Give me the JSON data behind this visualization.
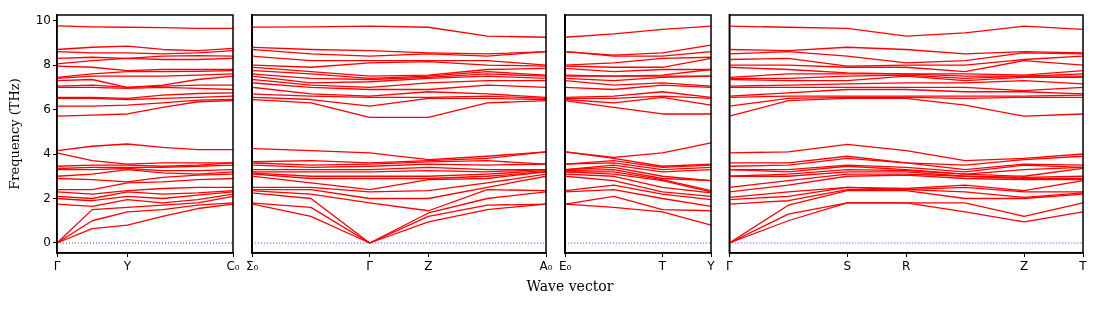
{
  "chart_data": [
    {
      "type": "line",
      "ylabel": "Frequency (THz)",
      "marker": "none",
      "line_style": "solid",
      "legend": false,
      "categories": [
        "Γ",
        null,
        "Y",
        null,
        null,
        "C₀"
      ],
      "ylim": [
        -0.45,
        10.25
      ],
      "yticks": [
        0,
        2,
        4,
        6,
        8,
        10
      ],
      "ref_lines": [
        {
          "axis": "y",
          "value": 0,
          "color": "#0000ff",
          "line_style": "dotted"
        }
      ],
      "series": [
        {
          "color": "#ff0000",
          "values": [
            0,
            0.65,
            0.8,
            1.2,
            1.55,
            1.75
          ]
        },
        {
          "color": "#ff0000",
          "values": [
            0,
            1.0,
            1.4,
            1.5,
            1.7,
            1.8
          ]
        },
        {
          "color": "#ff0000",
          "values": [
            0,
            1.5,
            1.6,
            1.7,
            1.8,
            2.1
          ]
        },
        {
          "color": "#ff0000",
          "values": [
            1.75,
            1.65,
            1.95,
            1.8,
            1.95,
            2.2
          ]
        },
        {
          "color": "#ff0000",
          "values": [
            2.0,
            1.9,
            2.1,
            2.0,
            2.15,
            2.3
          ]
        },
        {
          "color": "#ff0000",
          "values": [
            2.1,
            2.0,
            2.3,
            2.2,
            2.25,
            2.35
          ]
        },
        {
          "color": "#ff0000",
          "values": [
            2.3,
            2.2,
            2.35,
            2.45,
            2.5,
            2.5
          ]
        },
        {
          "color": "#ff0000",
          "values": [
            2.4,
            2.4,
            2.7,
            2.75,
            2.85,
            2.9
          ]
        },
        {
          "color": "#ff0000",
          "values": [
            2.9,
            2.85,
            2.75,
            2.95,
            3.05,
            3.1
          ]
        },
        {
          "color": "#ff0000",
          "values": [
            3.0,
            3.1,
            3.3,
            3.15,
            3.1,
            3.2
          ]
        },
        {
          "color": "#ff0000",
          "values": [
            3.3,
            3.3,
            3.35,
            3.25,
            3.25,
            3.3
          ]
        },
        {
          "color": "#ff0000",
          "values": [
            3.35,
            3.4,
            3.4,
            3.4,
            3.45,
            3.5
          ]
        },
        {
          "color": "#ff0000",
          "values": [
            3.45,
            3.5,
            3.5,
            3.45,
            3.5,
            3.6
          ]
        },
        {
          "color": "#ff0000",
          "values": [
            4.05,
            3.7,
            3.55,
            3.6,
            3.6,
            3.6
          ]
        },
        {
          "color": "#ff0000",
          "values": [
            4.15,
            4.35,
            4.45,
            4.3,
            4.2,
            4.2
          ]
        },
        {
          "color": "#ff0000",
          "values": [
            5.7,
            5.75,
            5.8,
            6.1,
            6.35,
            6.4
          ]
        },
        {
          "color": "#ff0000",
          "values": [
            6.15,
            6.15,
            6.2,
            6.3,
            6.42,
            6.45
          ]
        },
        {
          "color": "#ff0000",
          "values": [
            6.5,
            6.5,
            6.45,
            6.5,
            6.55,
            6.6
          ]
        },
        {
          "color": "#ff0000",
          "values": [
            6.55,
            6.55,
            6.5,
            6.65,
            6.72,
            6.75
          ]
        },
        {
          "color": "#ff0000",
          "values": [
            7.0,
            7.0,
            6.95,
            7.0,
            6.95,
            6.9
          ]
        },
        {
          "color": "#ff0000",
          "values": [
            7.05,
            7.1,
            7.0,
            7.05,
            7.1,
            7.1
          ]
        },
        {
          "color": "#ff0000",
          "values": [
            7.3,
            7.35,
            7.0,
            7.1,
            7.35,
            7.5
          ]
        },
        {
          "color": "#ff0000",
          "values": [
            7.4,
            7.5,
            7.5,
            7.5,
            7.55,
            7.6
          ]
        },
        {
          "color": "#ff0000",
          "values": [
            7.45,
            7.6,
            7.7,
            7.7,
            7.72,
            7.75
          ]
        },
        {
          "color": "#ff0000",
          "values": [
            7.95,
            7.9,
            7.75,
            7.8,
            7.8,
            7.8
          ]
        },
        {
          "color": "#ff0000",
          "values": [
            8.05,
            8.2,
            8.3,
            8.25,
            8.25,
            8.3
          ]
        },
        {
          "color": "#ff0000",
          "values": [
            8.3,
            8.35,
            8.3,
            8.4,
            8.42,
            8.4
          ]
        },
        {
          "color": "#ff0000",
          "values": [
            8.6,
            8.55,
            8.55,
            8.5,
            8.55,
            8.65
          ]
        },
        {
          "color": "#ff0000",
          "values": [
            8.7,
            8.8,
            8.85,
            8.7,
            8.65,
            8.75
          ]
        },
        {
          "color": "#ff0000",
          "values": [
            9.76,
            9.72,
            9.7,
            9.68,
            9.65,
            9.65
          ]
        }
      ]
    },
    {
      "type": "line",
      "marker": "none",
      "line_style": "solid",
      "legend": false,
      "tick_labels": "x",
      "categories": [
        "Σ₀",
        null,
        "Γ",
        "Z",
        null,
        "A₀"
      ],
      "ylim": [
        -0.45,
        10.25
      ],
      "yticks": [
        0,
        2,
        4,
        6,
        8,
        10
      ],
      "ref_lines": [
        {
          "axis": "y",
          "value": 0,
          "color": "#0000ff",
          "line_style": "dotted"
        }
      ],
      "series": [
        {
          "color": "#ff0000",
          "values": [
            1.75,
            1.2,
            0,
            0.95,
            1.5,
            1.75
          ]
        },
        {
          "color": "#ff0000",
          "values": [
            1.8,
            1.6,
            0,
            1.2,
            1.7,
            1.75
          ]
        },
        {
          "color": "#ff0000",
          "values": [
            2.25,
            2.0,
            0,
            1.35,
            2.0,
            2.3
          ]
        },
        {
          "color": "#ff0000",
          "values": [
            2.35,
            2.2,
            1.8,
            1.45,
            2.4,
            2.35
          ]
        },
        {
          "color": "#ff0000",
          "values": [
            2.4,
            2.4,
            2.0,
            2.0,
            2.5,
            3.0
          ]
        },
        {
          "color": "#ff0000",
          "values": [
            2.5,
            2.5,
            2.3,
            2.35,
            2.7,
            3.1
          ]
        },
        {
          "color": "#ff0000",
          "values": [
            3.0,
            2.7,
            2.4,
            2.85,
            2.9,
            3.2
          ]
        },
        {
          "color": "#ff0000",
          "values": [
            3.1,
            2.9,
            2.9,
            2.9,
            3.0,
            3.2
          ]
        },
        {
          "color": "#ff0000",
          "values": [
            3.15,
            3.0,
            3.0,
            3.0,
            3.1,
            3.25
          ]
        },
        {
          "color": "#ff0000",
          "values": [
            3.2,
            3.2,
            3.2,
            3.25,
            3.2,
            3.3
          ]
        },
        {
          "color": "#ff0000",
          "values": [
            3.3,
            3.3,
            3.3,
            3.4,
            3.3,
            3.3
          ]
        },
        {
          "color": "#ff0000",
          "values": [
            3.5,
            3.4,
            3.45,
            3.55,
            3.5,
            3.55
          ]
        },
        {
          "color": "#ff0000",
          "values": [
            3.6,
            3.5,
            3.55,
            3.65,
            3.7,
            3.55
          ]
        },
        {
          "color": "#ff0000",
          "values": [
            3.65,
            3.7,
            3.6,
            3.7,
            3.8,
            4.1
          ]
        },
        {
          "color": "#ff0000",
          "values": [
            4.25,
            4.15,
            4.05,
            3.75,
            3.9,
            4.1
          ]
        },
        {
          "color": "#ff0000",
          "values": [
            6.45,
            6.3,
            5.65,
            5.65,
            6.3,
            6.4
          ]
        },
        {
          "color": "#ff0000",
          "values": [
            6.55,
            6.45,
            6.15,
            6.5,
            6.5,
            6.45
          ]
        },
        {
          "color": "#ff0000",
          "values": [
            6.7,
            6.6,
            6.55,
            6.55,
            6.6,
            6.5
          ]
        },
        {
          "color": "#ff0000",
          "values": [
            7.0,
            6.7,
            6.6,
            6.8,
            6.7,
            6.55
          ]
        },
        {
          "color": "#ff0000",
          "values": [
            7.2,
            7.0,
            6.9,
            6.9,
            7.1,
            7.0
          ]
        },
        {
          "color": "#ff0000",
          "values": [
            7.35,
            7.1,
            7.0,
            7.2,
            7.3,
            7.3
          ]
        },
        {
          "color": "#ff0000",
          "values": [
            7.5,
            7.2,
            7.25,
            7.4,
            7.5,
            7.4
          ]
        },
        {
          "color": "#ff0000",
          "values": [
            7.6,
            7.4,
            7.35,
            7.45,
            7.6,
            7.5
          ]
        },
        {
          "color": "#ff0000",
          "values": [
            7.75,
            7.6,
            7.4,
            7.5,
            7.7,
            7.55
          ]
        },
        {
          "color": "#ff0000",
          "values": [
            7.9,
            7.7,
            7.5,
            7.55,
            7.8,
            7.85
          ]
        },
        {
          "color": "#ff0000",
          "values": [
            8.0,
            7.9,
            8.1,
            8.15,
            8.0,
            7.95
          ]
        },
        {
          "color": "#ff0000",
          "values": [
            8.4,
            8.2,
            8.2,
            8.2,
            8.2,
            8.0
          ]
        },
        {
          "color": "#ff0000",
          "values": [
            8.7,
            8.5,
            8.4,
            8.5,
            8.4,
            8.6
          ]
        },
        {
          "color": "#ff0000",
          "values": [
            8.8,
            8.7,
            8.65,
            8.55,
            8.5,
            8.6
          ]
        },
        {
          "color": "#ff0000",
          "values": [
            9.7,
            9.72,
            9.75,
            9.7,
            9.3,
            9.25
          ]
        }
      ]
    },
    {
      "type": "line",
      "xlabel": "Wave vector",
      "marker": "none",
      "line_style": "solid",
      "legend": false,
      "tick_labels": "x",
      "categories": [
        "E₀",
        null,
        "T",
        "Y"
      ],
      "ylim": [
        -0.45,
        10.25
      ],
      "yticks": [
        0,
        2,
        4,
        6,
        8,
        10
      ],
      "ref_lines": [
        {
          "axis": "y",
          "value": 0,
          "color": "#0000ff",
          "line_style": "dotted"
        }
      ],
      "series": [
        {
          "color": "#ff0000",
          "values": [
            1.75,
            1.6,
            1.4,
            0.8
          ]
        },
        {
          "color": "#ff0000",
          "values": [
            1.75,
            2.1,
            1.5,
            1.45
          ]
        },
        {
          "color": "#ff0000",
          "values": [
            2.3,
            2.4,
            2.0,
            1.65
          ]
        },
        {
          "color": "#ff0000",
          "values": [
            2.35,
            2.6,
            2.2,
            1.95
          ]
        },
        {
          "color": "#ff0000",
          "values": [
            3.0,
            2.8,
            2.3,
            2.1
          ]
        },
        {
          "color": "#ff0000",
          "values": [
            3.1,
            3.0,
            2.5,
            2.25
          ]
        },
        {
          "color": "#ff0000",
          "values": [
            3.2,
            3.1,
            2.8,
            2.3
          ]
        },
        {
          "color": "#ff0000",
          "values": [
            3.2,
            3.2,
            2.85,
            2.35
          ]
        },
        {
          "color": "#ff0000",
          "values": [
            3.25,
            3.3,
            2.9,
            2.8
          ]
        },
        {
          "color": "#ff0000",
          "values": [
            3.3,
            3.4,
            3.0,
            2.8
          ]
        },
        {
          "color": "#ff0000",
          "values": [
            3.3,
            3.5,
            3.2,
            3.3
          ]
        },
        {
          "color": "#ff0000",
          "values": [
            3.55,
            3.6,
            3.3,
            3.4
          ]
        },
        {
          "color": "#ff0000",
          "values": [
            3.55,
            3.7,
            3.4,
            3.5
          ]
        },
        {
          "color": "#ff0000",
          "values": [
            4.1,
            3.8,
            3.45,
            3.55
          ]
        },
        {
          "color": "#ff0000",
          "values": [
            4.1,
            3.85,
            4.05,
            4.5
          ]
        },
        {
          "color": "#ff0000",
          "values": [
            6.4,
            6.1,
            5.8,
            5.8
          ]
        },
        {
          "color": "#ff0000",
          "values": [
            6.45,
            6.3,
            6.55,
            6.2
          ]
        },
        {
          "color": "#ff0000",
          "values": [
            6.5,
            6.5,
            6.6,
            6.5
          ]
        },
        {
          "color": "#ff0000",
          "values": [
            6.55,
            6.6,
            6.8,
            6.55
          ]
        },
        {
          "color": "#ff0000",
          "values": [
            7.0,
            6.9,
            7.1,
            7.0
          ]
        },
        {
          "color": "#ff0000",
          "values": [
            7.3,
            7.1,
            7.2,
            7.05
          ]
        },
        {
          "color": "#ff0000",
          "values": [
            7.4,
            7.3,
            7.45,
            7.5
          ]
        },
        {
          "color": "#ff0000",
          "values": [
            7.5,
            7.5,
            7.5,
            7.5
          ]
        },
        {
          "color": "#ff0000",
          "values": [
            7.55,
            7.5,
            7.55,
            7.8
          ]
        },
        {
          "color": "#ff0000",
          "values": [
            7.85,
            7.7,
            7.8,
            7.8
          ]
        },
        {
          "color": "#ff0000",
          "values": [
            7.95,
            7.9,
            7.9,
            8.3
          ]
        },
        {
          "color": "#ff0000",
          "values": [
            8.0,
            8.1,
            8.3,
            8.35
          ]
        },
        {
          "color": "#ff0000",
          "values": [
            8.6,
            8.4,
            8.4,
            8.6
          ]
        },
        {
          "color": "#ff0000",
          "values": [
            8.6,
            8.45,
            8.55,
            8.9
          ]
        },
        {
          "color": "#ff0000",
          "values": [
            9.25,
            9.4,
            9.6,
            9.75
          ]
        }
      ]
    },
    {
      "type": "line",
      "marker": "none",
      "line_style": "solid",
      "legend": false,
      "tick_labels": "x",
      "categories": [
        "Γ",
        null,
        "S",
        "R",
        null,
        "Z",
        "T"
      ],
      "ylim": [
        -0.45,
        10.25
      ],
      "yticks": [
        0,
        2,
        4,
        6,
        8,
        10
      ],
      "ref_lines": [
        {
          "axis": "y",
          "value": 0,
          "color": "#0000ff",
          "line_style": "dotted"
        }
      ],
      "series": [
        {
          "color": "#ff0000",
          "values": [
            0,
            1.0,
            1.8,
            1.8,
            1.4,
            0.95,
            1.4
          ]
        },
        {
          "color": "#ff0000",
          "values": [
            0,
            1.3,
            1.8,
            1.8,
            1.8,
            1.2,
            1.8
          ]
        },
        {
          "color": "#ff0000",
          "values": [
            0,
            1.7,
            2.35,
            2.35,
            2.0,
            2.0,
            2.2
          ]
        },
        {
          "color": "#ff0000",
          "values": [
            1.75,
            1.9,
            2.4,
            2.4,
            2.3,
            2.05,
            2.25
          ]
        },
        {
          "color": "#ff0000",
          "values": [
            1.95,
            2.1,
            2.5,
            2.4,
            2.5,
            2.3,
            2.3
          ]
        },
        {
          "color": "#ff0000",
          "values": [
            2.05,
            2.3,
            2.5,
            2.45,
            2.6,
            2.35,
            2.8
          ]
        },
        {
          "color": "#ff0000",
          "values": [
            2.3,
            2.6,
            3.0,
            3.05,
            2.9,
            2.85,
            2.85
          ]
        },
        {
          "color": "#ff0000",
          "values": [
            2.5,
            2.8,
            3.1,
            3.1,
            3.0,
            2.9,
            2.9
          ]
        },
        {
          "color": "#ff0000",
          "values": [
            3.0,
            3.0,
            3.2,
            3.2,
            3.0,
            2.95,
            3.0
          ]
        },
        {
          "color": "#ff0000",
          "values": [
            3.0,
            3.1,
            3.3,
            3.25,
            3.1,
            3.0,
            3.35
          ]
        },
        {
          "color": "#ff0000",
          "values": [
            3.3,
            3.2,
            3.45,
            3.3,
            3.1,
            3.3,
            3.4
          ]
        },
        {
          "color": "#ff0000",
          "values": [
            3.3,
            3.3,
            3.5,
            3.4,
            3.2,
            3.5,
            3.4
          ]
        },
        {
          "color": "#ff0000",
          "values": [
            3.45,
            3.5,
            3.8,
            3.6,
            3.3,
            3.55,
            3.5
          ]
        },
        {
          "color": "#ff0000",
          "values": [
            3.6,
            3.6,
            3.9,
            3.6,
            3.5,
            3.75,
            3.9
          ]
        },
        {
          "color": "#ff0000",
          "values": [
            4.05,
            4.1,
            4.43,
            4.15,
            3.7,
            3.8,
            4.0
          ]
        },
        {
          "color": "#ff0000",
          "values": [
            5.7,
            6.4,
            6.5,
            6.5,
            6.2,
            5.7,
            5.8
          ]
        },
        {
          "color": "#ff0000",
          "values": [
            6.15,
            6.5,
            6.55,
            6.55,
            6.5,
            6.55,
            6.55
          ]
        },
        {
          "color": "#ff0000",
          "values": [
            6.55,
            6.6,
            6.6,
            6.6,
            6.6,
            6.6,
            6.65
          ]
        },
        {
          "color": "#ff0000",
          "values": [
            6.6,
            6.75,
            6.9,
            6.9,
            6.8,
            6.8,
            6.7
          ]
        },
        {
          "color": "#ff0000",
          "values": [
            7.0,
            7.0,
            7.0,
            7.0,
            7.0,
            6.85,
            7.0
          ]
        },
        {
          "color": "#ff0000",
          "values": [
            7.05,
            7.1,
            7.15,
            7.2,
            7.2,
            7.3,
            7.15
          ]
        },
        {
          "color": "#ff0000",
          "values": [
            7.35,
            7.3,
            7.3,
            7.5,
            7.3,
            7.45,
            7.45
          ]
        },
        {
          "color": "#ff0000",
          "values": [
            7.4,
            7.4,
            7.5,
            7.55,
            7.4,
            7.5,
            7.5
          ]
        },
        {
          "color": "#ff0000",
          "values": [
            7.45,
            7.6,
            7.6,
            7.6,
            7.5,
            7.5,
            7.6
          ]
        },
        {
          "color": "#ff0000",
          "values": [
            7.9,
            7.8,
            7.65,
            7.6,
            7.6,
            7.55,
            7.75
          ]
        },
        {
          "color": "#ff0000",
          "values": [
            8.0,
            8.0,
            7.9,
            7.9,
            7.7,
            8.2,
            8.0
          ]
        },
        {
          "color": "#ff0000",
          "values": [
            8.25,
            8.3,
            7.95,
            8.0,
            8.0,
            8.25,
            8.4
          ]
        },
        {
          "color": "#ff0000",
          "values": [
            8.5,
            8.6,
            8.4,
            8.1,
            8.2,
            8.55,
            8.5
          ]
        },
        {
          "color": "#ff0000",
          "values": [
            8.7,
            8.65,
            8.8,
            8.7,
            8.5,
            8.6,
            8.55
          ]
        },
        {
          "color": "#ff0000",
          "values": [
            9.75,
            9.7,
            9.65,
            9.3,
            9.45,
            9.75,
            9.6
          ]
        }
      ]
    }
  ]
}
